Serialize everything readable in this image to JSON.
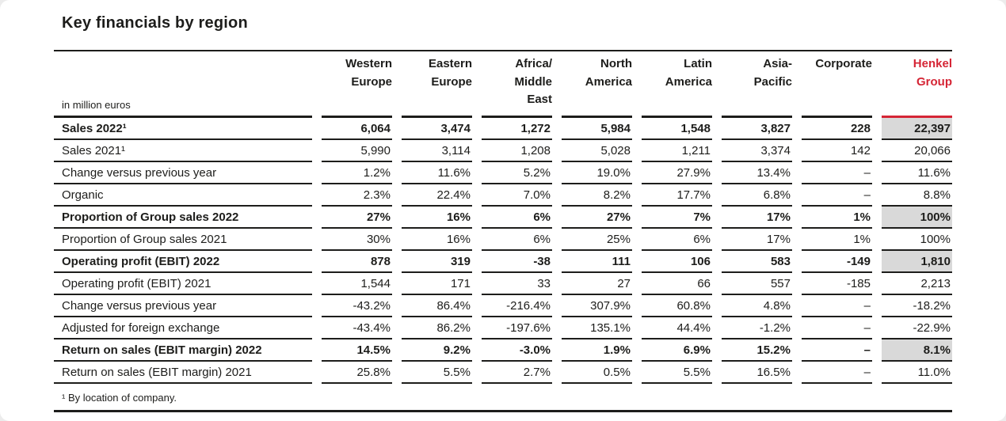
{
  "title": "Key financials by region",
  "henkel_red": "#d52535",
  "highlight_gray": "#d9d9d9",
  "table": {
    "unit_label": "in million euros",
    "columns": [
      "Western\nEurope",
      "Eastern\nEurope",
      "Africa/\nMiddle\nEast",
      "North\nAmerica",
      "Latin\nAmerica",
      "Asia-\nPacific",
      "Corporate",
      "Henkel\nGroup"
    ],
    "rows": [
      {
        "label": "Sales 2022¹",
        "bold": true,
        "highlight": true,
        "values": [
          "6,064",
          "3,474",
          "1,272",
          "5,984",
          "1,548",
          "3,827",
          "228",
          "22,397"
        ]
      },
      {
        "label": "Sales 2021¹",
        "bold": false,
        "highlight": false,
        "values": [
          "5,990",
          "3,114",
          "1,208",
          "5,028",
          "1,211",
          "3,374",
          "142",
          "20,066"
        ]
      },
      {
        "label": "Change versus previous year",
        "bold": false,
        "highlight": false,
        "values": [
          "1.2%",
          "11.6%",
          "5.2%",
          "19.0%",
          "27.9%",
          "13.4%",
          "–",
          "11.6%"
        ]
      },
      {
        "label": "Organic",
        "bold": false,
        "highlight": false,
        "values": [
          "2.3%",
          "22.4%",
          "7.0%",
          "8.2%",
          "17.7%",
          "6.8%",
          "–",
          "8.8%"
        ]
      },
      {
        "label": "Proportion of Group sales 2022",
        "bold": true,
        "highlight": true,
        "values": [
          "27%",
          "16%",
          "6%",
          "27%",
          "7%",
          "17%",
          "1%",
          "100%"
        ]
      },
      {
        "label": "Proportion of Group sales 2021",
        "bold": false,
        "highlight": false,
        "values": [
          "30%",
          "16%",
          "6%",
          "25%",
          "6%",
          "17%",
          "1%",
          "100%"
        ]
      },
      {
        "label": "Operating profit (EBIT) 2022",
        "bold": true,
        "highlight": true,
        "values": [
          "878",
          "319",
          "-38",
          "111",
          "106",
          "583",
          "-149",
          "1,810"
        ]
      },
      {
        "label": "Operating profit (EBIT) 2021",
        "bold": false,
        "highlight": false,
        "values": [
          "1,544",
          "171",
          "33",
          "27",
          "66",
          "557",
          "-185",
          "2,213"
        ]
      },
      {
        "label": "Change versus previous year",
        "bold": false,
        "highlight": false,
        "values": [
          "-43.2%",
          "86.4%",
          "-216.4%",
          "307.9%",
          "60.8%",
          "4.8%",
          "–",
          "-18.2%"
        ]
      },
      {
        "label": "Adjusted for foreign exchange",
        "bold": false,
        "highlight": false,
        "values": [
          "-43.4%",
          "86.2%",
          "-197.6%",
          "135.1%",
          "44.4%",
          "-1.2%",
          "–",
          "-22.9%"
        ]
      },
      {
        "label": "Return on sales (EBIT margin) 2022",
        "bold": true,
        "highlight": true,
        "values": [
          "14.5%",
          "9.2%",
          "-3.0%",
          "1.9%",
          "6.9%",
          "15.2%",
          "–",
          "8.1%"
        ]
      },
      {
        "label": "Return on sales (EBIT margin) 2021",
        "bold": false,
        "highlight": false,
        "values": [
          "25.8%",
          "5.5%",
          "2.7%",
          "0.5%",
          "5.5%",
          "16.5%",
          "–",
          "11.0%"
        ]
      }
    ],
    "footnote": "¹ By location of company."
  }
}
